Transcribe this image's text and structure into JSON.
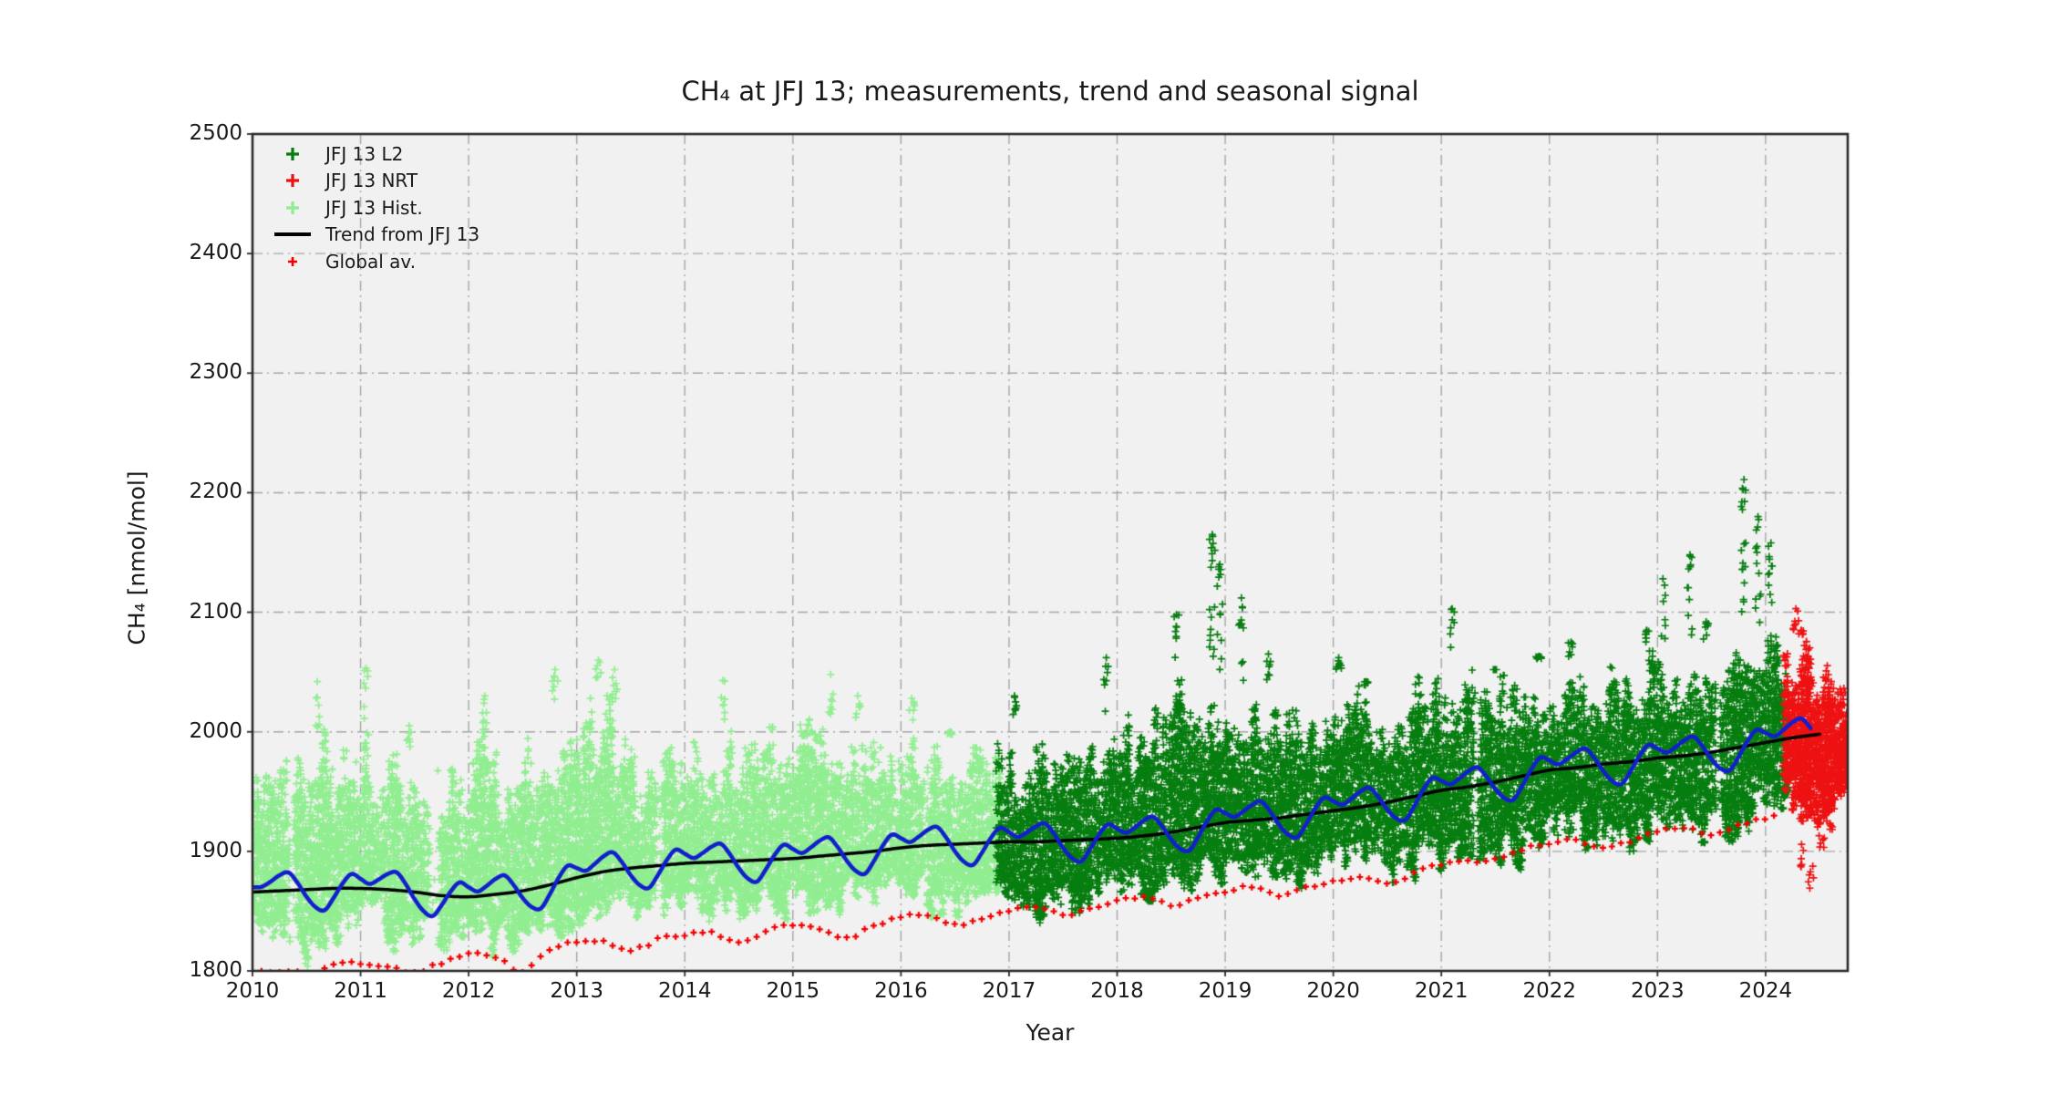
{
  "title": {
    "text": "CH₄ at JFJ 13; measurements, trend and seasonal signal"
  },
  "axes": {
    "xlabel": "Year",
    "ylabel": "CH₄ [nmol/mol]",
    "xlim": [
      2010,
      2024.76
    ],
    "ylim": [
      1800,
      2500
    ],
    "xticks": [
      2010,
      2011,
      2012,
      2013,
      2014,
      2015,
      2016,
      2017,
      2018,
      2019,
      2020,
      2021,
      2022,
      2023,
      2024
    ],
    "yticks": [
      1800,
      1900,
      2000,
      2100,
      2200,
      2300,
      2400,
      2500
    ],
    "facecolor": "#f1f1f1",
    "grid_color": "#a6a6a6",
    "spine_color": "#2a2a2a",
    "grid_style": "dash-dot"
  },
  "legend": {
    "entries": [
      {
        "label": "JFJ 13 L2",
        "marker": "plus",
        "color": "#067d0f"
      },
      {
        "label": "JFJ 13 NRT",
        "marker": "plus",
        "color": "#ee1111"
      },
      {
        "label": "JFJ 13 Hist.",
        "marker": "plus",
        "color": "#90ee90"
      },
      {
        "label": "Trend from JFJ 13",
        "marker": "line",
        "color": "#000000"
      },
      {
        "label": "Global av.",
        "marker": "plus-small",
        "color": "#f40000"
      }
    ]
  },
  "chart_data": {
    "type": "scatter",
    "title": "CH₄ at JFJ 13; measurements, trend and seasonal signal",
    "xlabel": "Year",
    "ylabel": "CH₄ [nmol/mol]",
    "xlim": [
      2010,
      2024.76
    ],
    "ylim": [
      1800,
      2500
    ],
    "grid": true,
    "legend_position": "upper-left",
    "series": [
      {
        "name": "JFJ 13 Hist.",
        "kind": "scatter-cloud",
        "color": "#90ee90",
        "x_start": 2010.0,
        "x_end": 2016.92,
        "envelope": [
          [
            2010.0,
            1832,
            1885,
            1972
          ],
          [
            2010.4,
            1812,
            1880,
            1985
          ],
          [
            2010.6,
            1803,
            1878,
            1995
          ],
          [
            2011.0,
            1826,
            1890,
            2000
          ],
          [
            2011.5,
            1806,
            1878,
            1985
          ],
          [
            2011.9,
            1815,
            1875,
            1990
          ],
          [
            2012.2,
            1812,
            1878,
            2008
          ],
          [
            2012.5,
            1802,
            1875,
            1992
          ],
          [
            2012.9,
            1825,
            1885,
            2030
          ],
          [
            2013.2,
            1838,
            1893,
            2040
          ],
          [
            2013.6,
            1832,
            1892,
            2005
          ],
          [
            2014.0,
            1842,
            1896,
            2008
          ],
          [
            2014.5,
            1838,
            1896,
            2002
          ],
          [
            2015.0,
            1846,
            1900,
            2016
          ],
          [
            2015.5,
            1842,
            1902,
            2008
          ],
          [
            2016.0,
            1850,
            1908,
            2012
          ],
          [
            2016.5,
            1836,
            1904,
            1996
          ],
          [
            2016.92,
            1852,
            1908,
            1998
          ]
        ],
        "spikes": [
          [
            2010.6,
            2042
          ],
          [
            2011.05,
            2053
          ],
          [
            2011.45,
            2005
          ],
          [
            2012.15,
            2030
          ],
          [
            2012.8,
            2052
          ],
          [
            2013.2,
            2060
          ],
          [
            2013.35,
            2052
          ],
          [
            2014.35,
            2043
          ],
          [
            2015.35,
            2048
          ],
          [
            2015.6,
            2030
          ],
          [
            2016.1,
            2028
          ],
          [
            2016.45,
            2000
          ]
        ],
        "gaps": [
          [
            2010.33,
            2010.39
          ],
          [
            2011.63,
            2011.73
          ],
          [
            2013.72,
            2013.78
          ],
          [
            2016.2,
            2016.25
          ]
        ]
      },
      {
        "name": "JFJ 13 L2",
        "kind": "scatter-cloud",
        "color": "#067d0f",
        "x_start": 2016.9,
        "x_end": 2024.21,
        "envelope": [
          [
            2016.9,
            1854,
            1908,
            2000
          ],
          [
            2017.5,
            1840,
            1906,
            2006
          ],
          [
            2018.0,
            1858,
            1912,
            2012
          ],
          [
            2018.5,
            1860,
            1917,
            2042
          ],
          [
            2019.0,
            1868,
            1925,
            2046
          ],
          [
            2019.5,
            1866,
            1927,
            2032
          ],
          [
            2020.0,
            1874,
            1935,
            2042
          ],
          [
            2020.5,
            1872,
            1939,
            2036
          ],
          [
            2021.0,
            1882,
            1950,
            2062
          ],
          [
            2021.5,
            1884,
            1955,
            2052
          ],
          [
            2022.0,
            1893,
            1965,
            2062
          ],
          [
            2022.5,
            1894,
            1969,
            2056
          ],
          [
            2023.0,
            1903,
            1976,
            2076
          ],
          [
            2023.5,
            1903,
            1980,
            2072
          ],
          [
            2024.0,
            1918,
            1989,
            2092
          ],
          [
            2024.21,
            1928,
            1992,
            2082
          ]
        ],
        "spikes": [
          [
            2017.05,
            2030
          ],
          [
            2017.9,
            2062
          ],
          [
            2018.55,
            2098
          ],
          [
            2018.88,
            2165
          ],
          [
            2018.95,
            2140
          ],
          [
            2019.15,
            2112
          ],
          [
            2019.4,
            2065
          ],
          [
            2020.05,
            2062
          ],
          [
            2020.3,
            2042
          ],
          [
            2021.1,
            2103
          ],
          [
            2021.5,
            2052
          ],
          [
            2021.9,
            2063
          ],
          [
            2022.2,
            2075
          ],
          [
            2022.9,
            2085
          ],
          [
            2023.05,
            2128
          ],
          [
            2023.3,
            2148
          ],
          [
            2023.45,
            2092
          ],
          [
            2023.8,
            2211
          ],
          [
            2023.93,
            2180
          ],
          [
            2024.05,
            2158
          ]
        ],
        "gaps": [
          [
            2021.28,
            2021.34
          ],
          [
            2023.52,
            2023.58
          ]
        ]
      },
      {
        "name": "JFJ 13 NRT",
        "kind": "scatter-cloud",
        "color": "#ee1111",
        "x_start": 2024.18,
        "x_end": 2024.76,
        "envelope": [
          [
            2024.18,
            1930,
            1995,
            2076
          ],
          [
            2024.35,
            1906,
            1992,
            2082
          ],
          [
            2024.5,
            1918,
            1986,
            2072
          ],
          [
            2024.65,
            1930,
            1982,
            2056
          ],
          [
            2024.76,
            1938,
            1978,
            2046
          ]
        ],
        "spikes": [
          [
            2024.28,
            2103
          ],
          [
            2024.33,
            2085
          ]
        ],
        "downtails": [
          [
            2024.33,
            1885
          ],
          [
            2024.42,
            1868
          ],
          [
            2024.52,
            1902
          ],
          [
            2024.6,
            1918
          ]
        ],
        "gaps": []
      },
      {
        "name": "Global av.",
        "kind": "markers",
        "color": "#f40000",
        "marker_interval_years": 0.0833,
        "points": [
          [
            2010.0,
            1799
          ],
          [
            2010.25,
            1800
          ],
          [
            2010.5,
            1798
          ],
          [
            2010.75,
            1804
          ],
          [
            2011.0,
            1807
          ],
          [
            2011.25,
            1803
          ],
          [
            2011.5,
            1799
          ],
          [
            2011.75,
            1807
          ],
          [
            2012.0,
            1814
          ],
          [
            2012.25,
            1812
          ],
          [
            2012.5,
            1800
          ],
          [
            2012.75,
            1818
          ],
          [
            2013.0,
            1824
          ],
          [
            2013.25,
            1825
          ],
          [
            2013.5,
            1817
          ],
          [
            2013.75,
            1826
          ],
          [
            2014.0,
            1830
          ],
          [
            2014.25,
            1832
          ],
          [
            2014.5,
            1824
          ],
          [
            2014.75,
            1833
          ],
          [
            2015.0,
            1838
          ],
          [
            2015.25,
            1835
          ],
          [
            2015.5,
            1827
          ],
          [
            2015.75,
            1838
          ],
          [
            2016.0,
            1845
          ],
          [
            2016.25,
            1846
          ],
          [
            2016.5,
            1839
          ],
          [
            2016.75,
            1843
          ],
          [
            2017.0,
            1850
          ],
          [
            2017.25,
            1853
          ],
          [
            2017.5,
            1847
          ],
          [
            2017.75,
            1852
          ],
          [
            2018.0,
            1859
          ],
          [
            2018.25,
            1862
          ],
          [
            2018.5,
            1855
          ],
          [
            2018.75,
            1861
          ],
          [
            2019.0,
            1867
          ],
          [
            2019.25,
            1870
          ],
          [
            2019.5,
            1863
          ],
          [
            2019.75,
            1870
          ],
          [
            2020.0,
            1875
          ],
          [
            2020.25,
            1878
          ],
          [
            2020.5,
            1873
          ],
          [
            2020.75,
            1882
          ],
          [
            2021.0,
            1889
          ],
          [
            2021.25,
            1891
          ],
          [
            2021.5,
            1893
          ],
          [
            2021.75,
            1902
          ],
          [
            2022.0,
            1906
          ],
          [
            2022.25,
            1909
          ],
          [
            2022.5,
            1903
          ],
          [
            2022.75,
            1909
          ],
          [
            2023.0,
            1916
          ],
          [
            2023.25,
            1919
          ],
          [
            2023.5,
            1914
          ],
          [
            2023.75,
            1921
          ],
          [
            2024.0,
            1928
          ],
          [
            2024.1,
            1930
          ]
        ]
      },
      {
        "name": "Trend from JFJ 13",
        "kind": "line",
        "color": "#000000",
        "width": 3.5,
        "points": [
          [
            2010.0,
            1866
          ],
          [
            2010.25,
            1867
          ],
          [
            2010.5,
            1868
          ],
          [
            2010.75,
            1869
          ],
          [
            2011.0,
            1869
          ],
          [
            2011.25,
            1868
          ],
          [
            2011.5,
            1866
          ],
          [
            2011.75,
            1863
          ],
          [
            2012.0,
            1862
          ],
          [
            2012.25,
            1864
          ],
          [
            2012.5,
            1867
          ],
          [
            2012.75,
            1872
          ],
          [
            2013.0,
            1878
          ],
          [
            2013.25,
            1883
          ],
          [
            2013.5,
            1886
          ],
          [
            2013.75,
            1888
          ],
          [
            2014.0,
            1890
          ],
          [
            2014.25,
            1891
          ],
          [
            2014.5,
            1892
          ],
          [
            2014.75,
            1893
          ],
          [
            2015.0,
            1894
          ],
          [
            2015.25,
            1896
          ],
          [
            2015.5,
            1898
          ],
          [
            2015.75,
            1900
          ],
          [
            2016.0,
            1903
          ],
          [
            2016.25,
            1905
          ],
          [
            2016.5,
            1906
          ],
          [
            2016.75,
            1907
          ],
          [
            2017.0,
            1908
          ],
          [
            2017.25,
            1908
          ],
          [
            2017.5,
            1909
          ],
          [
            2017.75,
            1910
          ],
          [
            2018.0,
            1911
          ],
          [
            2018.25,
            1913
          ],
          [
            2018.5,
            1916
          ],
          [
            2018.75,
            1920
          ],
          [
            2019.0,
            1924
          ],
          [
            2019.25,
            1926
          ],
          [
            2019.5,
            1928
          ],
          [
            2019.75,
            1931
          ],
          [
            2020.0,
            1934
          ],
          [
            2020.25,
            1937
          ],
          [
            2020.5,
            1941
          ],
          [
            2020.75,
            1946
          ],
          [
            2021.0,
            1951
          ],
          [
            2021.25,
            1954
          ],
          [
            2021.5,
            1958
          ],
          [
            2021.75,
            1963
          ],
          [
            2022.0,
            1968
          ],
          [
            2022.25,
            1970
          ],
          [
            2022.5,
            1973
          ],
          [
            2022.75,
            1975
          ],
          [
            2023.0,
            1978
          ],
          [
            2023.25,
            1980
          ],
          [
            2023.5,
            1983
          ],
          [
            2023.75,
            1987
          ],
          [
            2024.0,
            1991
          ],
          [
            2024.25,
            1995
          ],
          [
            2024.5,
            1998
          ]
        ]
      },
      {
        "name": "Seasonal signal (trend + seasonal)",
        "kind": "seasonal-line",
        "color": "#1120cc",
        "width": 4.5,
        "x_start": 2010.0,
        "x_end": 2024.45,
        "base": "Trend from JFJ 13",
        "monthly_offsets": [
          4,
          8,
          13,
          15,
          6,
          -6,
          -15,
          -18,
          -8,
          4,
          12,
          8
        ]
      }
    ]
  }
}
